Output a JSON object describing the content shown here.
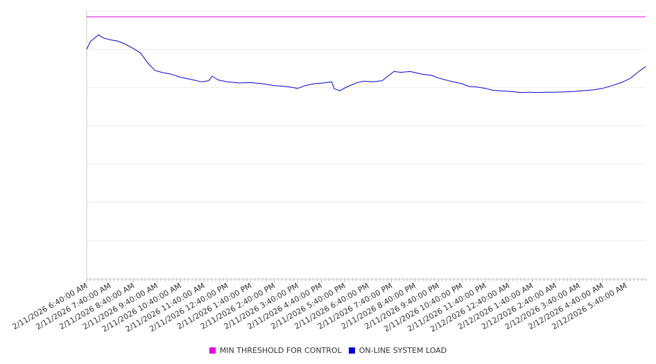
{
  "chart_data": {
    "type": "line",
    "x_tick_labels": [
      "2/11/2026 6:40:00 AM",
      "2/11/2026 7:40:00 AM",
      "2/11/2026 8:40:00 AM",
      "2/11/2026 9:40:00 AM",
      "2/11/2026 10:40:00 AM",
      "2/11/2026 11:40:00 AM",
      "2/11/2026 12:40:00 PM",
      "2/11/2026 1:40:00 PM",
      "2/11/2026 2:40:00 PM",
      "2/11/2026 3:40:00 PM",
      "2/11/2026 4:40:00 PM",
      "2/11/2026 5:40:00 PM",
      "2/11/2026 6:40:00 PM",
      "2/11/2026 7:40:00 PM",
      "2/11/2026 8:40:00 PM",
      "2/11/2026 9:40:00 PM",
      "2/11/2026 10:40:00 PM",
      "2/11/2026 11:40:00 PM",
      "2/12/2026 12:40:00 AM",
      "2/12/2026 1:40:00 AM",
      "2/12/2026 2:40:00 AM",
      "2/12/2026 3:40:00 AM",
      "2/12/2026 4:40:00 AM",
      "2/12/2026 5:40:00 AM"
    ],
    "x_range_hours": [
      0,
      23.833
    ],
    "y_range": [
      0,
      7
    ],
    "gridlines": true,
    "legend_position": "bottom",
    "series": [
      {
        "name": "MIN THRESHOLD FOR CONTROL",
        "color": "#e000e0",
        "points": [
          [
            0,
            6.85
          ],
          [
            23.833,
            6.85
          ]
        ]
      },
      {
        "name": "ON-LINE SYSTEM LOAD",
        "color": "#0000cc",
        "points": [
          [
            0,
            6.0
          ],
          [
            0.15,
            6.2
          ],
          [
            0.35,
            6.3
          ],
          [
            0.5,
            6.38
          ],
          [
            0.7,
            6.3
          ],
          [
            1.0,
            6.25
          ],
          [
            1.3,
            6.22
          ],
          [
            1.6,
            6.15
          ],
          [
            2.0,
            6.02
          ],
          [
            2.3,
            5.9
          ],
          [
            2.6,
            5.65
          ],
          [
            2.9,
            5.45
          ],
          [
            3.2,
            5.4
          ],
          [
            3.6,
            5.35
          ],
          [
            4.0,
            5.27
          ],
          [
            4.4,
            5.22
          ],
          [
            4.9,
            5.15
          ],
          [
            5.2,
            5.18
          ],
          [
            5.35,
            5.3
          ],
          [
            5.6,
            5.2
          ],
          [
            6.0,
            5.15
          ],
          [
            6.5,
            5.12
          ],
          [
            7.0,
            5.13
          ],
          [
            7.5,
            5.1
          ],
          [
            8.0,
            5.05
          ],
          [
            8.5,
            5.03
          ],
          [
            9.0,
            4.98
          ],
          [
            9.3,
            5.05
          ],
          [
            9.7,
            5.1
          ],
          [
            10.1,
            5.12
          ],
          [
            10.45,
            5.15
          ],
          [
            10.55,
            4.97
          ],
          [
            10.8,
            4.92
          ],
          [
            11.1,
            5.02
          ],
          [
            11.5,
            5.12
          ],
          [
            11.8,
            5.17
          ],
          [
            12.2,
            5.15
          ],
          [
            12.6,
            5.18
          ],
          [
            12.85,
            5.3
          ],
          [
            13.1,
            5.42
          ],
          [
            13.4,
            5.4
          ],
          [
            13.8,
            5.42
          ],
          [
            14.3,
            5.35
          ],
          [
            14.7,
            5.32
          ],
          [
            15.0,
            5.25
          ],
          [
            15.5,
            5.17
          ],
          [
            16.0,
            5.1
          ],
          [
            16.3,
            5.03
          ],
          [
            16.6,
            5.02
          ],
          [
            17.0,
            4.98
          ],
          [
            17.3,
            4.93
          ],
          [
            17.7,
            4.91
          ],
          [
            18.1,
            4.9
          ],
          [
            18.5,
            4.87
          ],
          [
            18.9,
            4.88
          ],
          [
            19.2,
            4.87
          ],
          [
            19.6,
            4.88
          ],
          [
            20.0,
            4.88
          ],
          [
            20.4,
            4.89
          ],
          [
            20.8,
            4.9
          ],
          [
            21.2,
            4.92
          ],
          [
            21.6,
            4.94
          ],
          [
            22.0,
            4.98
          ],
          [
            22.4,
            5.05
          ],
          [
            22.8,
            5.13
          ],
          [
            23.2,
            5.25
          ],
          [
            23.5,
            5.4
          ],
          [
            23.833,
            5.55
          ]
        ]
      }
    ]
  },
  "legend": {
    "items": [
      {
        "label": "MIN THRESHOLD FOR CONTROL",
        "color": "#e000e0"
      },
      {
        "label": "ON-LINE SYSTEM LOAD",
        "color": "#0000cc"
      }
    ]
  }
}
